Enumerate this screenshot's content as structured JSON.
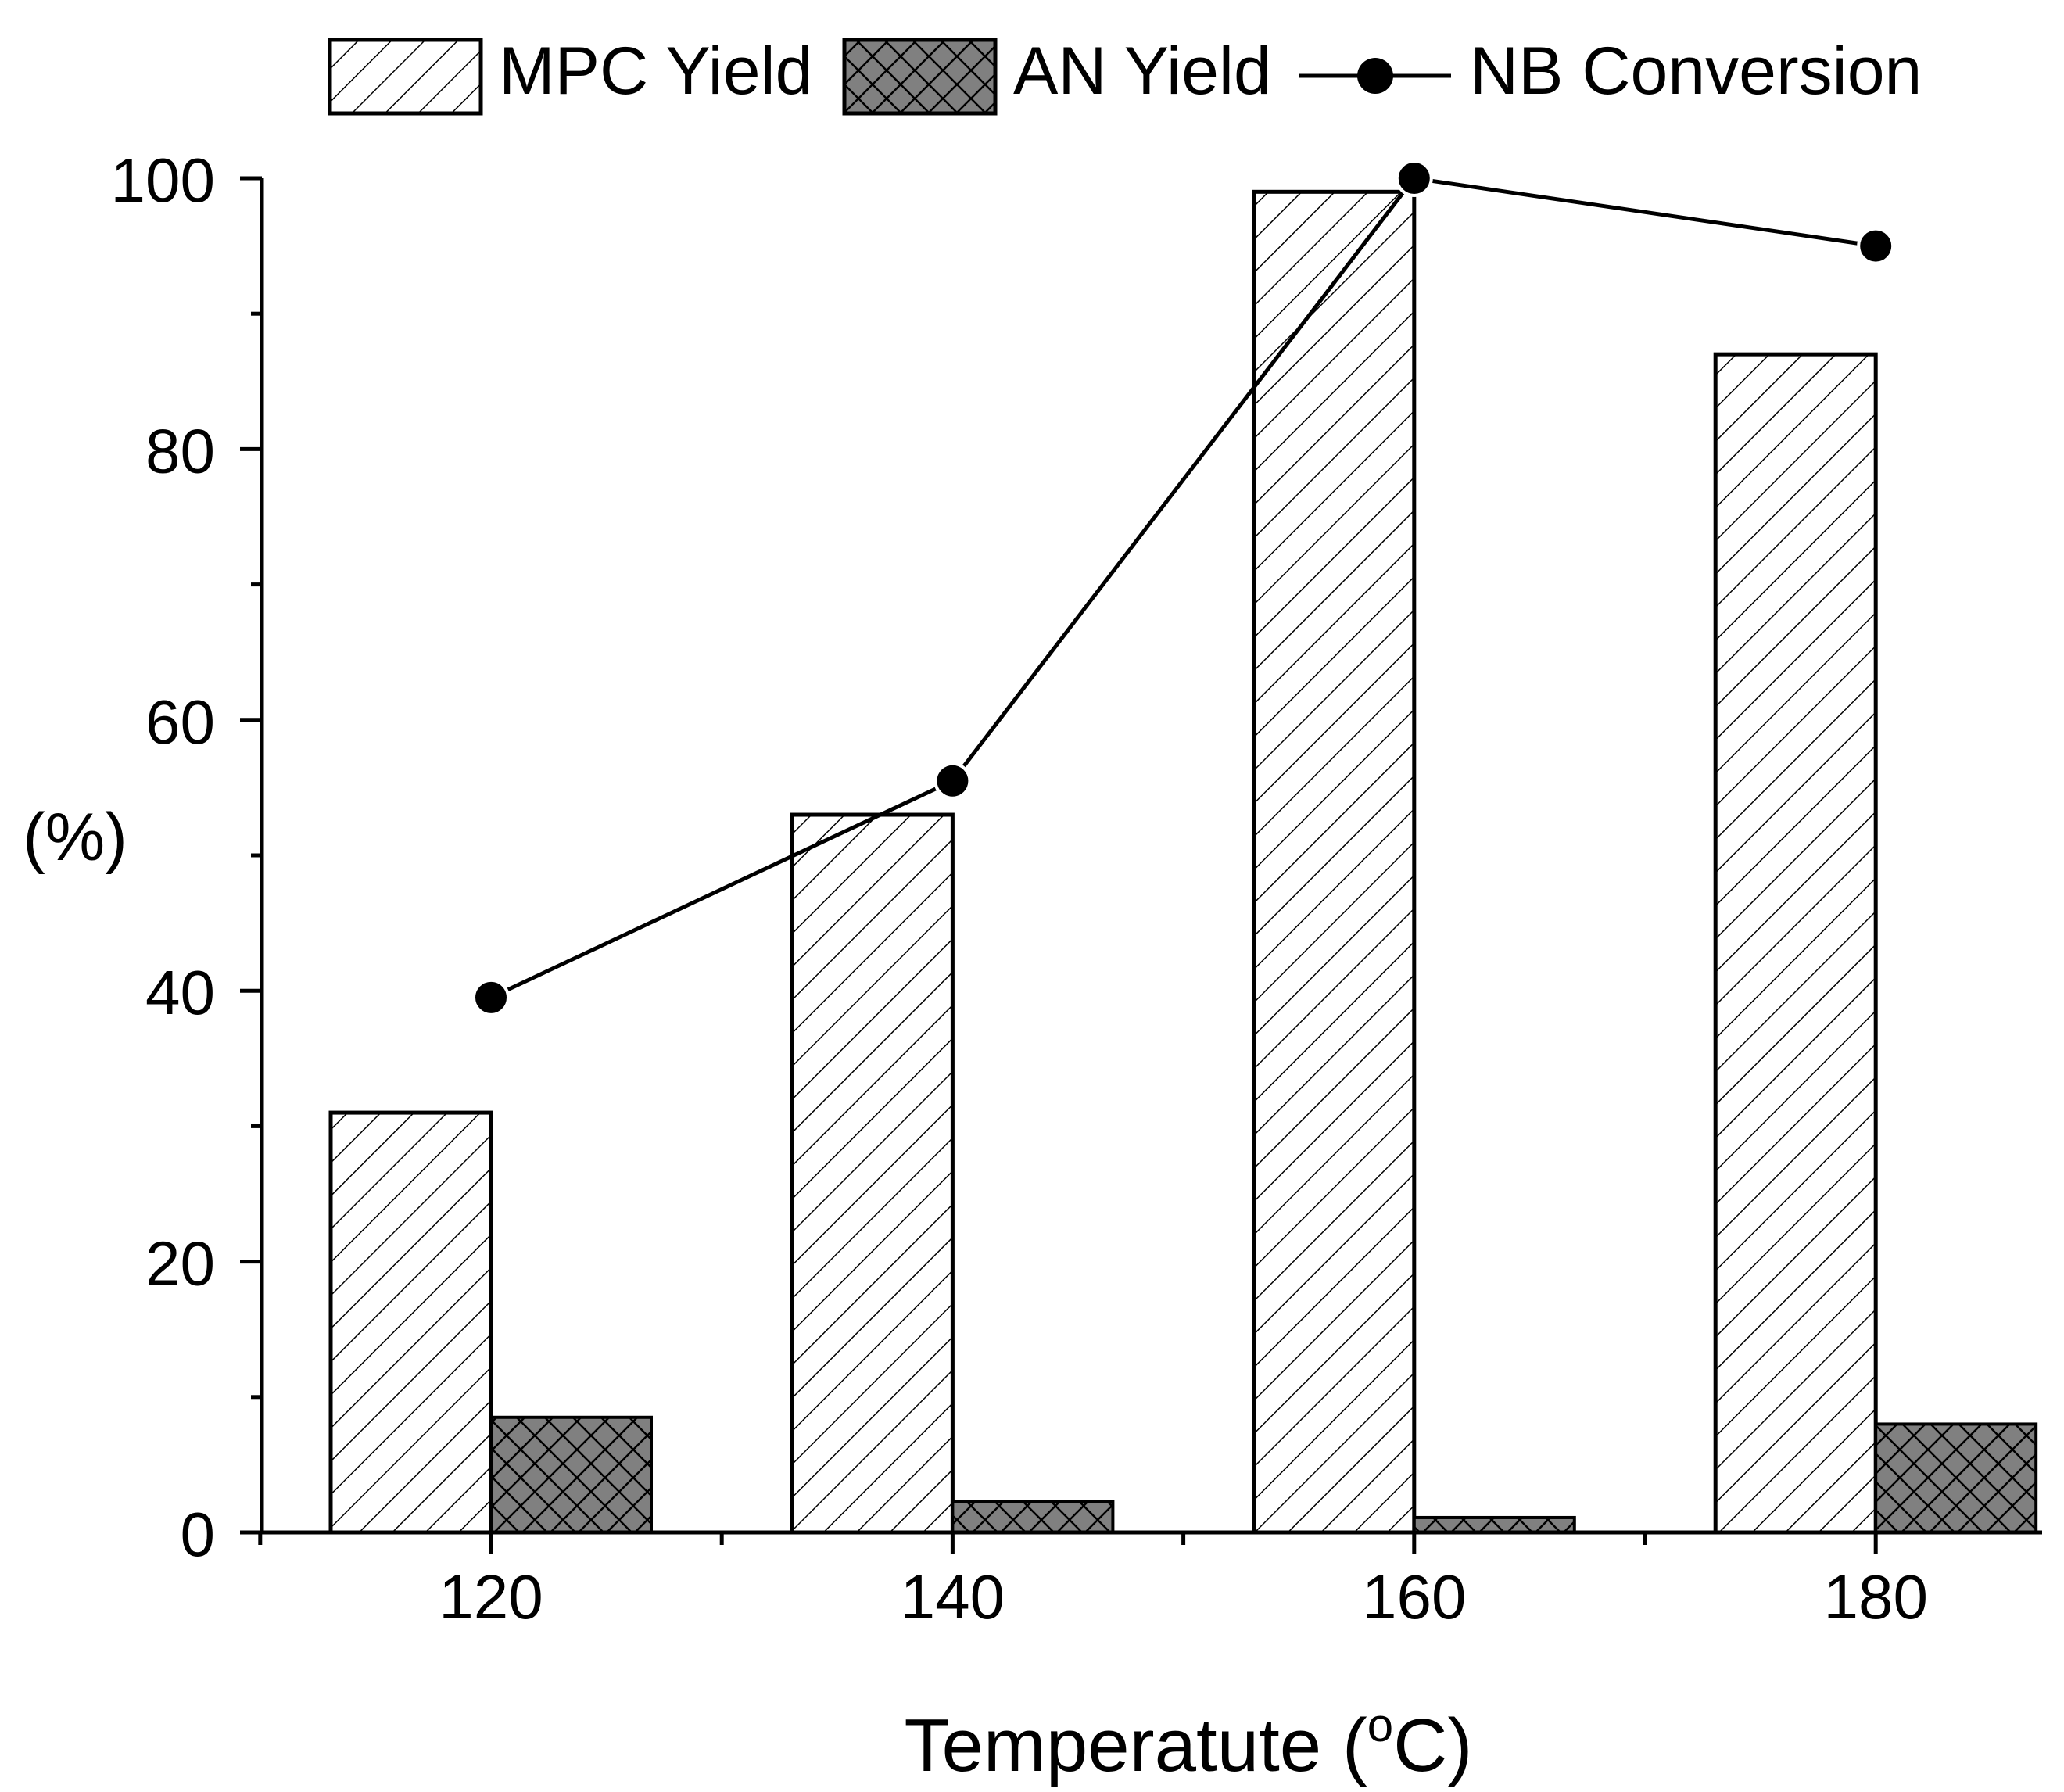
{
  "chart_data": {
    "type": "bar",
    "categories": [
      "120",
      "140",
      "160",
      "180"
    ],
    "x": [
      120,
      140,
      160,
      180
    ],
    "series": [
      {
        "name": "MPC Yield",
        "kind": "bar",
        "pattern": "diagonal-hatch",
        "fill": "#ffffff",
        "values": [
          31,
          53,
          99,
          87
        ]
      },
      {
        "name": "AN Yield",
        "kind": "bar",
        "pattern": "cross-hatch",
        "fill": "#808080",
        "values": [
          8.5,
          2.3,
          1.1,
          8
        ]
      },
      {
        "name": "NB Conversion",
        "kind": "line",
        "marker": "circle",
        "color": "#000000",
        "values": [
          39.5,
          55.5,
          100,
          95
        ]
      }
    ],
    "xlabel_main": "Temperatute (",
    "xlabel_sup": "o",
    "xlabel_end": "C)",
    "ylabel": "(%)",
    "ylim": [
      0,
      100
    ],
    "xlim": [
      110,
      187.5
    ],
    "y_ticks": [
      "0",
      "20",
      "40",
      "60",
      "80",
      "100"
    ],
    "x_ticks": [
      "120",
      "140",
      "160",
      "180"
    ],
    "legend_position": "top",
    "grid": false
  }
}
